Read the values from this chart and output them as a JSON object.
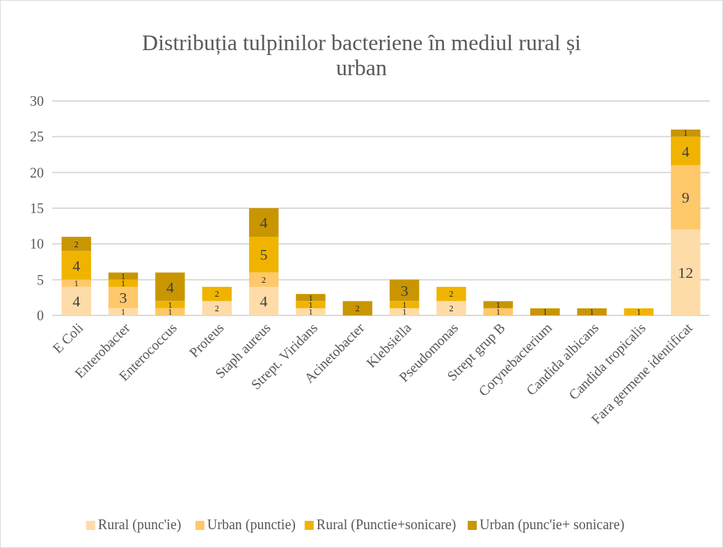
{
  "chart_data": {
    "type": "bar",
    "stacked": true,
    "title": "Distribuția tulpinilor bacteriene în mediul rural și urban",
    "categories": [
      "E Coli",
      "Enterobacter",
      "Enterococcus",
      "Proteus",
      "Staph aureus",
      "Strept. Viridans",
      "Acinetobacter",
      "Klebsiella",
      "Pseudomonas",
      "Strept grup B",
      "Corynebacterium",
      "Candida albicans",
      "Candida tropicalis",
      "Fara germene identificat"
    ],
    "series": [
      {
        "name": "Rural (punc'ie)",
        "color": "#fedca9",
        "values": [
          4,
          1,
          0,
          2,
          4,
          1,
          0,
          1,
          2,
          0,
          0,
          0,
          0,
          12
        ],
        "value_labels": [
          "4",
          "1",
          null,
          "2",
          "4",
          "1",
          null,
          "1",
          "2",
          null,
          null,
          null,
          null,
          "12"
        ]
      },
      {
        "name": "Urban (punctie)",
        "color": "#fec86b",
        "values": [
          1,
          3,
          1,
          0,
          2,
          0,
          0,
          0,
          0,
          1,
          0,
          0,
          0,
          9
        ],
        "value_labels": [
          "1",
          "3",
          "1",
          null,
          "2",
          null,
          null,
          null,
          null,
          "1",
          null,
          null,
          null,
          "9"
        ]
      },
      {
        "name": "Rural (Punctie+sonicare)",
        "color": "#f0b400",
        "values": [
          4,
          1,
          1,
          2,
          5,
          1,
          0,
          1,
          2,
          0,
          0,
          0,
          1,
          4
        ],
        "value_labels": [
          "4",
          "1",
          "1",
          "2",
          "5",
          "1",
          null,
          "1",
          "2",
          null,
          null,
          null,
          "1",
          "4"
        ]
      },
      {
        "name": "Urban (punc'ie+ sonicare)",
        "color": "#c99600",
        "values": [
          2,
          1,
          4,
          0,
          4,
          1,
          2,
          3,
          0,
          1,
          1,
          1,
          0,
          1
        ],
        "value_labels": [
          "2",
          "1",
          "4",
          null,
          "4",
          "1",
          "2",
          "3",
          null,
          "1",
          "1",
          "1",
          null,
          "1"
        ]
      }
    ],
    "ylim": [
      0,
      30
    ],
    "yticks": [
      0,
      5,
      10,
      15,
      20,
      25,
      30
    ],
    "grid": "y",
    "legend": "bottom"
  }
}
